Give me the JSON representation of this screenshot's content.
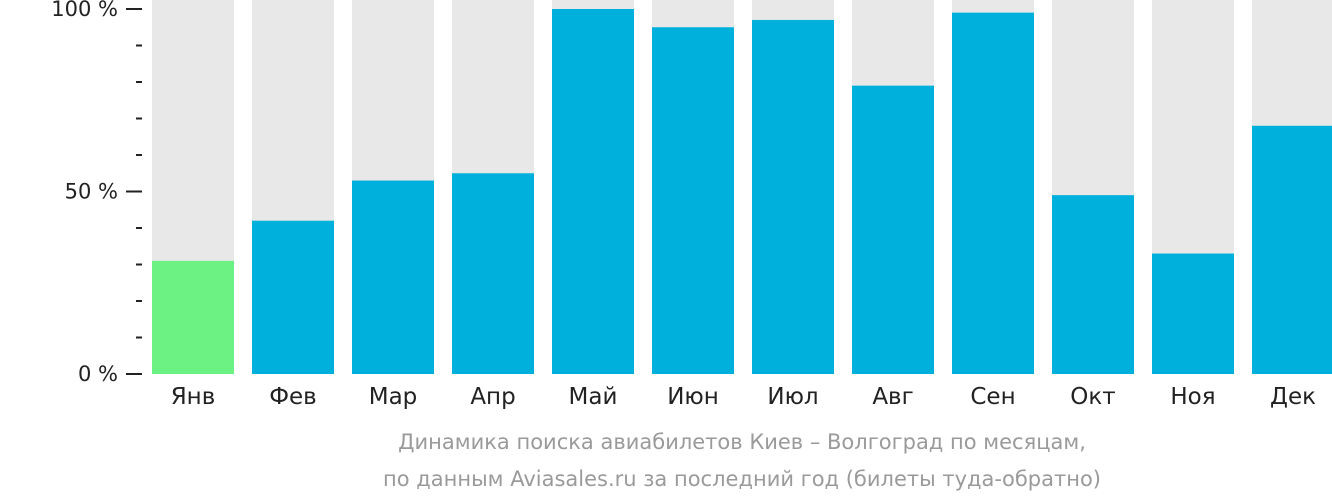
{
  "chart_data": {
    "type": "bar",
    "categories": [
      "Янв",
      "Фев",
      "Мар",
      "Апр",
      "Май",
      "Июн",
      "Июл",
      "Авг",
      "Сен",
      "Окт",
      "Ноя",
      "Дек"
    ],
    "values": [
      31,
      42,
      53,
      55,
      100,
      95,
      97,
      79,
      99,
      49,
      33,
      68
    ],
    "ylim": [
      0,
      100
    ],
    "y_tick_labels": [
      "0 %",
      "50 %",
      "100 %"
    ],
    "y_ticks": [
      0,
      50,
      100
    ],
    "y_minor_step": 10,
    "grid": false,
    "highlight_index": 0,
    "colors": {
      "bar": "#00b0dc",
      "highlight": "#6cf283",
      "track": "#e8e8e8",
      "axis_ticks": "#222222"
    }
  },
  "caption": {
    "line1": "Динамика поиска авиабилетов Киев – Волгоград по месяцам,",
    "line2": "по данным Aviasales.ru за последний год (билеты туда-обратно)"
  }
}
